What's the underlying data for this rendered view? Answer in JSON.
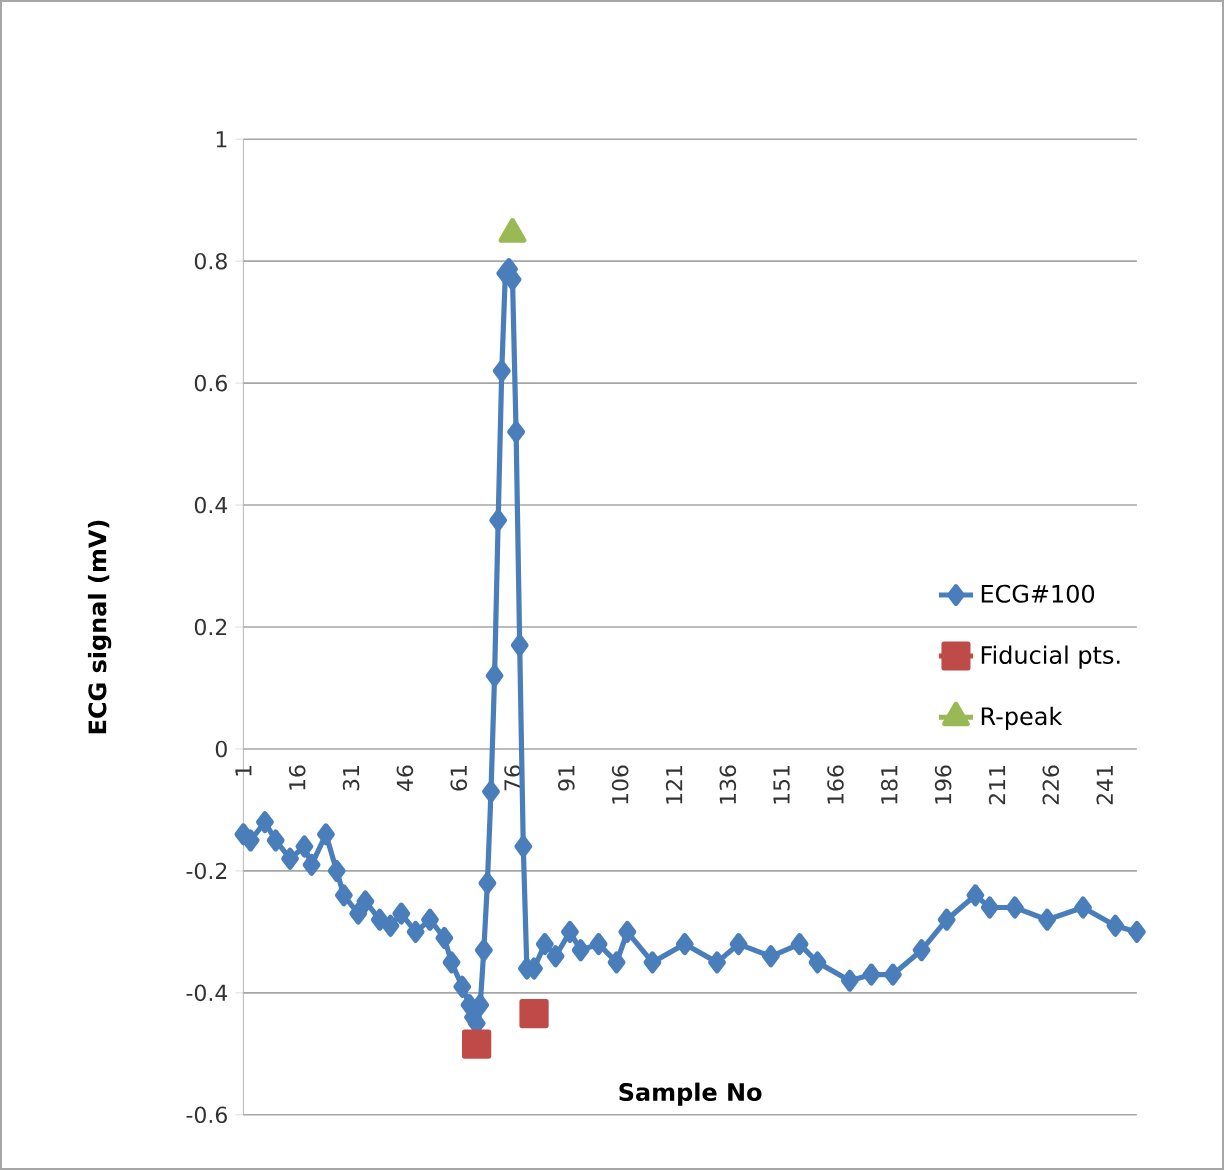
{
  "chart_data": {
    "type": "line",
    "xlabel": "Sample No",
    "ylabel": "ECG signal (mV)",
    "xlim": [
      1,
      250
    ],
    "xticks": [
      1,
      16,
      31,
      46,
      61,
      76,
      91,
      106,
      121,
      136,
      151,
      166,
      181,
      196,
      211,
      226,
      241
    ],
    "ylim": [
      -0.6,
      1
    ],
    "yticks": [
      -0.6,
      -0.4,
      -0.2,
      0,
      0.2,
      0.4,
      0.6,
      0.8,
      1
    ],
    "grid": "y",
    "legend": "right",
    "series": [
      {
        "name": "ECG#100",
        "color": "#4a7ebb",
        "marker": "diamond",
        "x": [
          1,
          3,
          7,
          10,
          14,
          18,
          20,
          24,
          27,
          29,
          33,
          35,
          39,
          42,
          45,
          49,
          53,
          57,
          59,
          62,
          64,
          65,
          66,
          67,
          68,
          69,
          70,
          71,
          72,
          73,
          74,
          75,
          76,
          77,
          78,
          79,
          80,
          82,
          85,
          88,
          92,
          95,
          100,
          105,
          108,
          115,
          124,
          133,
          139,
          148,
          156,
          161,
          170,
          176,
          182,
          190,
          197,
          205,
          209,
          216,
          225,
          235,
          244,
          250
        ],
        "values": [
          -0.14,
          -0.15,
          -0.12,
          -0.15,
          -0.18,
          -0.16,
          -0.19,
          -0.14,
          -0.2,
          -0.24,
          -0.27,
          -0.25,
          -0.28,
          -0.29,
          -0.27,
          -0.3,
          -0.28,
          -0.31,
          -0.35,
          -0.39,
          -0.42,
          -0.44,
          -0.45,
          -0.42,
          -0.33,
          -0.22,
          -0.07,
          0.12,
          0.375,
          0.62,
          0.78,
          0.787,
          0.77,
          0.52,
          0.17,
          -0.16,
          -0.36,
          -0.36,
          -0.32,
          -0.34,
          -0.3,
          -0.33,
          -0.32,
          -0.35,
          -0.3,
          -0.35,
          -0.32,
          -0.35,
          -0.32,
          -0.34,
          -0.32,
          -0.35,
          -0.38,
          -0.37,
          -0.37,
          -0.33,
          -0.28,
          -0.24,
          -0.26,
          -0.26,
          -0.28,
          -0.26,
          -0.29,
          -0.3
        ]
      },
      {
        "name": "Fiducial pts.",
        "color": "#be4b48",
        "marker": "square",
        "x": [
          66,
          74,
          82
        ],
        "values": [
          -0.484,
          null,
          -0.434
        ]
      },
      {
        "name": "R-peak",
        "color": "#98b954",
        "marker": "triangle",
        "x": [
          76
        ],
        "values": [
          0.845
        ]
      }
    ]
  }
}
